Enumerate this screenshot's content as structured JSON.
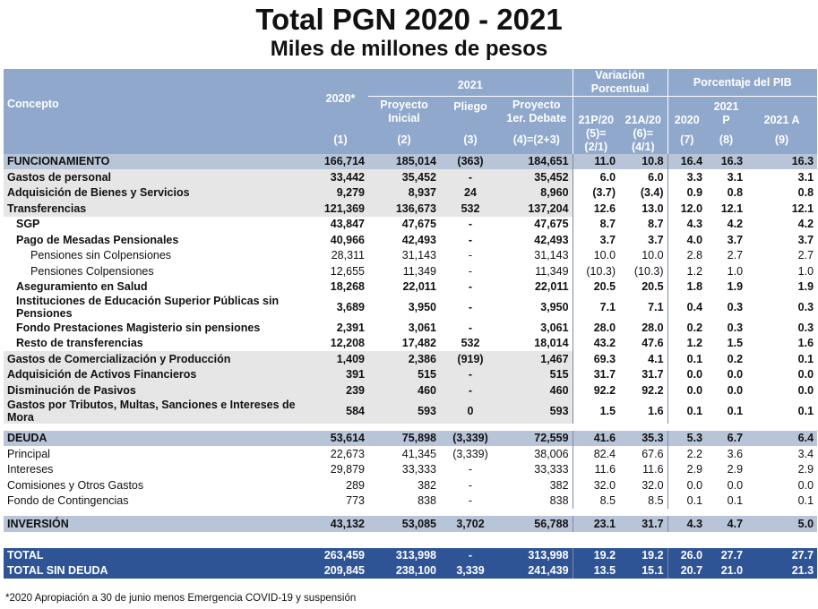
{
  "title": "Total PGN 2020 - 2021",
  "subtitle": "Miles de millones de pesos",
  "header": {
    "concepto": "Concepto",
    "y2020": "2020*",
    "y2021": "2021",
    "proyecto_inicial": "Proyecto Inicial",
    "pliego": "Pliego",
    "proyecto_debate": "Proyecto 1er. Debate",
    "variacion": "Variación Porcentual",
    "porcentaje": "Porcentaje del PIB",
    "v1": "21P/20",
    "v2": "21A/20",
    "p1": "2020",
    "p2": "2021 P",
    "p3": "2021 A",
    "n1": "(1)",
    "n2": "(2)",
    "n3": "(3)",
    "n4": "(4)=(2+3)",
    "n5": "(5)=(2/1)",
    "n6": "(6)=(4/1)",
    "n7": "(7)",
    "n8": "(8)",
    "n9": "(9)"
  },
  "rows": {
    "funcionamiento": [
      "FUNCIONAMIENTO",
      "166,714",
      "185,014",
      "(363)",
      "184,651",
      "11.0",
      "10.8",
      "16.4",
      "16.3",
      "16.3"
    ],
    "gastos_personal": [
      "Gastos de personal",
      "33,442",
      "35,452",
      "-",
      "35,452",
      "6.0",
      "6.0",
      "3.3",
      "3.1",
      "3.1"
    ],
    "adquisicion_bienes": [
      "Adquisición de Bienes y Servicios",
      "9,279",
      "8,937",
      "24",
      "8,960",
      "(3.7)",
      "(3.4)",
      "0.9",
      "0.8",
      "0.8"
    ],
    "transferencias": [
      "Transferencias",
      "121,369",
      "136,673",
      "532",
      "137,204",
      "12.6",
      "13.0",
      "12.0",
      "12.1",
      "12.1"
    ],
    "sgp": [
      "SGP",
      "43,847",
      "47,675",
      "-",
      "47,675",
      "8.7",
      "8.7",
      "4.3",
      "4.2",
      "4.2"
    ],
    "mesadas": [
      "Pago de Mesadas Pensionales",
      "40,966",
      "42,493",
      "-",
      "42,493",
      "3.7",
      "3.7",
      "4.0",
      "3.7",
      "3.7"
    ],
    "sin_colpensiones": [
      "Pensiones sin Colpensiones",
      "28,311",
      "31,143",
      "-",
      "31,143",
      "10.0",
      "10.0",
      "2.8",
      "2.7",
      "2.7"
    ],
    "colpensiones": [
      "Pensiones Colpensiones",
      "12,655",
      "11,349",
      "-",
      "11,349",
      "(10.3)",
      "(10.3)",
      "1.2",
      "1.0",
      "1.0"
    ],
    "aseguramiento": [
      "Aseguramiento en Salud",
      "18,268",
      "22,011",
      "-",
      "22,011",
      "20.5",
      "20.5",
      "1.8",
      "1.9",
      "1.9"
    ],
    "instituciones": [
      "Instituciones de Educación Superior Públicas sin Pensiones",
      "3,689",
      "3,950",
      "-",
      "3,950",
      "7.1",
      "7.1",
      "0.4",
      "0.3",
      "0.3"
    ],
    "fondo_magisterio": [
      "Fondo Prestaciones Magisterio sin pensiones",
      "2,391",
      "3,061",
      "-",
      "3,061",
      "28.0",
      "28.0",
      "0.2",
      "0.3",
      "0.3"
    ],
    "resto": [
      "Resto de transferencias",
      "12,208",
      "17,482",
      "532",
      "18,014",
      "43.2",
      "47.6",
      "1.2",
      "1.5",
      "1.6"
    ],
    "comercializacion": [
      "Gastos de Comercialización y Producción",
      "1,409",
      "2,386",
      "(919)",
      "1,467",
      "69.3",
      "4.1",
      "0.1",
      "0.2",
      "0.1"
    ],
    "activos": [
      "Adquisición de Activos Financieros",
      "391",
      "515",
      "-",
      "515",
      "31.7",
      "31.7",
      "0.0",
      "0.0",
      "0.0"
    ],
    "pasivos": [
      "Disminución de Pasivos",
      "239",
      "460",
      "-",
      "460",
      "92.2",
      "92.2",
      "0.0",
      "0.0",
      "0.0"
    ],
    "tributos": [
      "Gastos por Tributos, Multas, Sanciones e Intereses de Mora",
      "584",
      "593",
      "0",
      "593",
      "1.5",
      "1.6",
      "0.1",
      "0.1",
      "0.1"
    ],
    "deuda": [
      "DEUDA",
      "53,614",
      "75,898",
      "(3,339)",
      "72,559",
      "41.6",
      "35.3",
      "5.3",
      "6.7",
      "6.4"
    ],
    "principal": [
      "Principal",
      "22,673",
      "41,345",
      "(3,339)",
      "38,006",
      "82.4",
      "67.6",
      "2.2",
      "3.6",
      "3.4"
    ],
    "intereses": [
      "Intereses",
      "29,879",
      "33,333",
      "-",
      "33,333",
      "11.6",
      "11.6",
      "2.9",
      "2.9",
      "2.9"
    ],
    "comisiones": [
      "Comisiones y Otros Gastos",
      "289",
      "382",
      "-",
      "382",
      "32.0",
      "32.0",
      "0.0",
      "0.0",
      "0.0"
    ],
    "contingencias": [
      "Fondo de Contingencias",
      "773",
      "838",
      "-",
      "838",
      "8.5",
      "8.5",
      "0.1",
      "0.1",
      "0.1"
    ],
    "inversion": [
      "INVERSIÓN",
      "43,132",
      "53,085",
      "3,702",
      "56,788",
      "23.1",
      "31.7",
      "4.3",
      "4.7",
      "5.0"
    ],
    "total": [
      "TOTAL",
      "263,459",
      "313,998",
      "-",
      "313,998",
      "19.2",
      "19.2",
      "26.0",
      "27.7",
      "27.7"
    ],
    "total_sin_deuda": [
      "TOTAL SIN DEUDA",
      "209,845",
      "238,100",
      "3,339",
      "241,439",
      "13.5",
      "15.1",
      "20.7",
      "21.0",
      "21.3"
    ]
  },
  "footnote": "*2020 Apropiación a 30 de junio menos Emergencia COVID-19 y suspensión",
  "colors": {
    "header_bg": "#8fa8cc",
    "section_bg": "#b8c4d8",
    "total_bg": "#2f5496",
    "grey_bg": "#e6e6e6"
  }
}
